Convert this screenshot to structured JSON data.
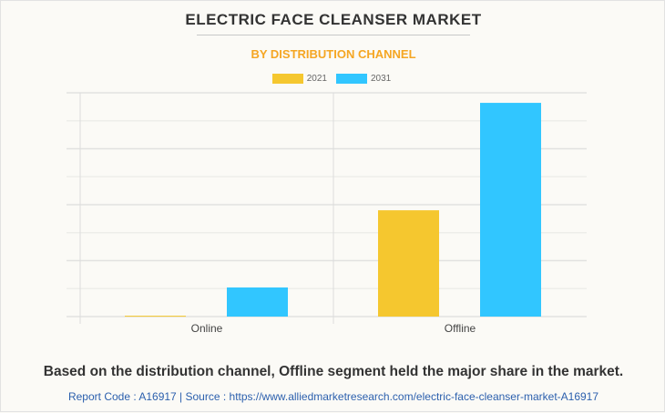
{
  "title": "ELECTRIC FACE CLEANSER MARKET",
  "subtitle": "BY DISTRIBUTION CHANNEL",
  "footer": "Based on the distribution channel, Offline segment held the major share in the market.",
  "source": "Report Code : A16917  |  Source : https://www.alliedmarketresearch.com/electric-face-cleanser-market-A16917",
  "chart_data": {
    "type": "bar",
    "categories": [
      "Online",
      "Offline"
    ],
    "series": [
      {
        "name": "2021",
        "color": "#f5c72f",
        "values": [
          0.03,
          3.8
        ]
      },
      {
        "name": "2031",
        "color": "#31c6ff",
        "values": [
          1.04,
          7.64
        ]
      }
    ],
    "ylim": [
      0,
      8
    ],
    "y_gridlines": 8,
    "grid": true,
    "y_tick_labels_shown": false,
    "legend_placement": "top-center"
  }
}
